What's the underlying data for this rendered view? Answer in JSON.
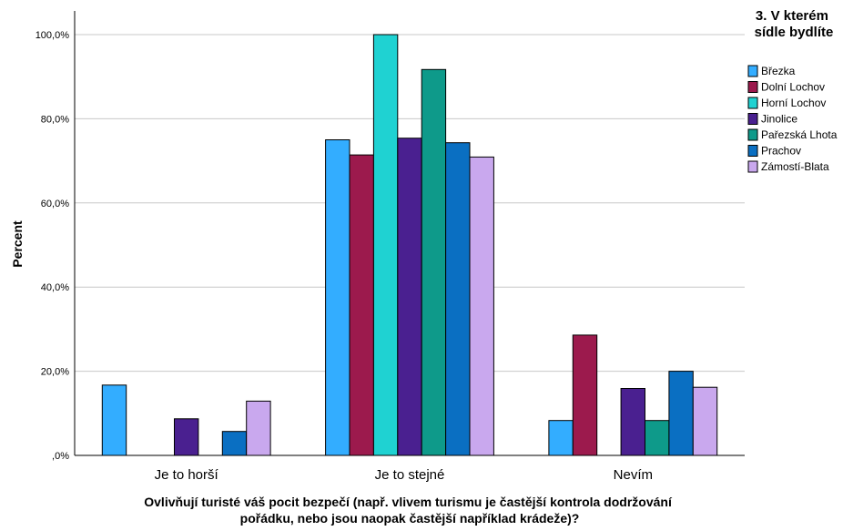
{
  "chart_data": {
    "type": "bar",
    "ylabel": "Percent",
    "xlabel": "Ovlivňují turisté váš pocit bezpečí (např. vlivem turismu je častější kontrola dodržování pořádku, nebo jsou naopak častější například krádeže)?",
    "xlabel_lines": [
      "Ovlivňují turisté váš pocit bezpečí (např. vlivem turismu je častější kontrola dodržování",
      "pořádku, nebo jsou naopak častější například krádeže)?"
    ],
    "ylim": [
      0,
      100
    ],
    "yticks": [
      0,
      20,
      40,
      60,
      80,
      100
    ],
    "ytick_labels": [
      ",0%",
      "20,0%",
      "40,0%",
      "60,0%",
      "80,0%",
      "100,0%"
    ],
    "grid": true,
    "legend_position": "right",
    "legend_title_lines": [
      "3. V kterém",
      "sídle bydlíte"
    ],
    "categories": [
      "Je to horší",
      "Je to stejné",
      "Nevím"
    ],
    "series": [
      {
        "name": "Březka",
        "color": "#33adff",
        "values": [
          16.7,
          75.0,
          8.3
        ]
      },
      {
        "name": "Dolní Lochov",
        "color": "#9c1a4d",
        "values": [
          0,
          71.4,
          28.6
        ]
      },
      {
        "name": "Horní Lochov",
        "color": "#1fd2d2",
        "values": [
          0,
          100.0,
          0
        ]
      },
      {
        "name": "Jinolice",
        "color": "#4a2090",
        "values": [
          8.7,
          75.4,
          15.9
        ]
      },
      {
        "name": "Pařezská Lhota",
        "color": "#0e9a8a",
        "values": [
          0,
          91.7,
          8.3
        ]
      },
      {
        "name": "Prachov",
        "color": "#0a6fc2",
        "values": [
          5.7,
          74.3,
          20.0
        ]
      },
      {
        "name": "Zámostí-Blata",
        "color": "#c9a8ee",
        "values": [
          12.9,
          70.9,
          16.2
        ]
      }
    ]
  }
}
